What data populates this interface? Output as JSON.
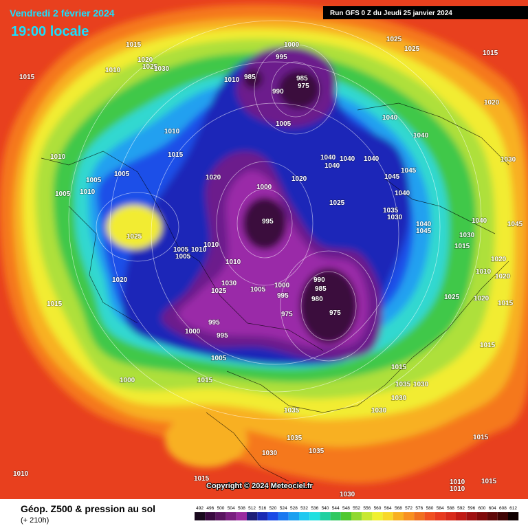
{
  "header": {
    "date": "Vendredi 2 février 2024",
    "time": "19:00 locale",
    "run": "Run GFS 0 Z du Jeudi 25 janvier 2024"
  },
  "map": {
    "pressure_labels": [
      1015,
      1015,
      1020,
      1025,
      1030,
      1010,
      1010,
      985,
      990,
      995,
      1000,
      985,
      975,
      1005,
      1025,
      1025,
      1015,
      1020,
      1040,
      1040,
      1010,
      1015,
      1010,
      1005,
      1005,
      1010,
      1005,
      1020,
      1000,
      1020,
      1040,
      1040,
      1040,
      1040,
      1045,
      1045,
      1025,
      1040,
      1035,
      1030,
      995,
      1025,
      1040,
      1045,
      1005,
      1005,
      1010,
      1010,
      1010,
      1020,
      1030,
      1025,
      1005,
      1000,
      990,
      985,
      995,
      980,
      975,
      975,
      995,
      1000,
      995,
      1015,
      1005,
      1000,
      1015,
      1015,
      1035,
      1030,
      1030,
      1030,
      1035,
      1035,
      1035,
      1030,
      1010,
      1015,
      1030,
      1010,
      1010,
      1015,
      1015,
      1025,
      1020,
      1015,
      1015,
      1010,
      1020,
      1020,
      1015,
      1030,
      1030,
      1040,
      1045
    ],
    "copyright": "Copyright © 2024 Meteociel.fr"
  },
  "footer": {
    "title": "Géop. Z500 & pression au sol",
    "subtitle": "(+ 210h)"
  },
  "legend": {
    "ticks": [
      492,
      496,
      500,
      504,
      508,
      512,
      516,
      520,
      524,
      528,
      532,
      536,
      540,
      544,
      548,
      552,
      556,
      560,
      564,
      568,
      572,
      576,
      580,
      584,
      588,
      592,
      596,
      600,
      604,
      608,
      612
    ],
    "colors": [
      "#1a0a1e",
      "#3a0a40",
      "#5a1460",
      "#7a1e80",
      "#9a2aa0",
      "#1e1e78",
      "#1a2ab4",
      "#1a4ae6",
      "#1a78f0",
      "#1aa0f0",
      "#20c8f0",
      "#20e0e0",
      "#20d0a0",
      "#30c860",
      "#50c830",
      "#90d830",
      "#c8e830",
      "#f0f030",
      "#f8d828",
      "#f8b020",
      "#f89020",
      "#f07020",
      "#f05020",
      "#e83a1e",
      "#d82a1a",
      "#c01a14",
      "#a01010",
      "#800a0a",
      "#600808",
      "#400404",
      "#100000"
    ]
  }
}
